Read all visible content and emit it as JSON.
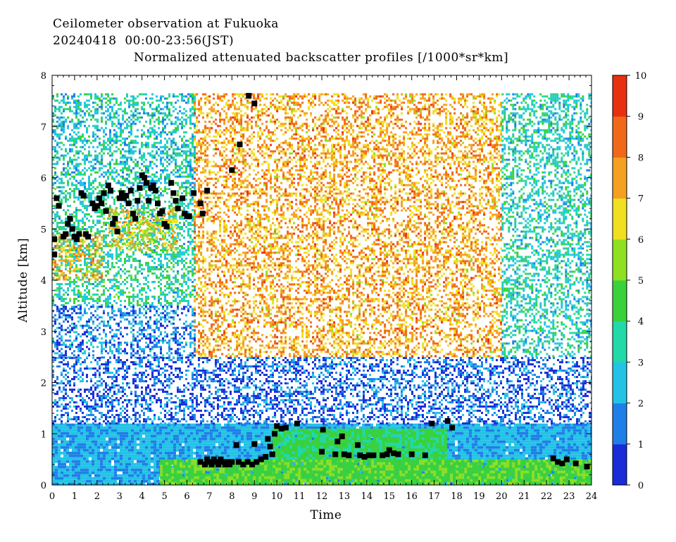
{
  "header": {
    "line1": "Ceilometer observation at Fukuoka",
    "line2": "20240418  00:00-23:56(JST)",
    "line3": "Normalized attenuated backscatter profiles [/1000*sr*km]"
  },
  "chart_data": {
    "type": "heatmap",
    "xlabel": "Time",
    "ylabel": "Altitude [km]",
    "xlim": [
      0,
      24
    ],
    "ylim": [
      0,
      8
    ],
    "x_ticks": [
      "0",
      "1",
      "2",
      "3",
      "4",
      "5",
      "6",
      "7",
      "8",
      "9",
      "10",
      "11",
      "12",
      "13",
      "14",
      "15",
      "16",
      "17",
      "18",
      "19",
      "20",
      "21",
      "22",
      "23",
      "24"
    ],
    "y_ticks": [
      "0",
      "1",
      "2",
      "3",
      "4",
      "5",
      "6",
      "7",
      "8"
    ],
    "colorbar": {
      "range": [
        0,
        10
      ],
      "ticks": [
        "0",
        "1",
        "2",
        "3",
        "4",
        "5",
        "6",
        "7",
        "8",
        "9",
        "10"
      ],
      "colors": [
        "#1a2bd8",
        "#1f7fe8",
        "#22c3e6",
        "#22d9a8",
        "#3ad23a",
        "#8fe020",
        "#f0e020",
        "#f5a020",
        "#f06818",
        "#e83010"
      ]
    },
    "regions": [
      {
        "x0": 0,
        "x1": 24,
        "y0": 0,
        "y1": 1.2,
        "value": 2.2
      },
      {
        "x0": 0,
        "x1": 24,
        "y0": 1.2,
        "y1": 2.5,
        "value": 1.2
      },
      {
        "x0": 4.8,
        "x1": 24,
        "y0": 0,
        "y1": 0.5,
        "value": 4.8
      },
      {
        "x0": 9.8,
        "x1": 17.5,
        "y0": 0.5,
        "y1": 1.1,
        "value": 4.2
      },
      {
        "x0": 0,
        "x1": 6.3,
        "y0": 3.5,
        "y1": 5.8,
        "value": 3.5
      },
      {
        "x0": 0,
        "x1": 2.2,
        "y0": 4.0,
        "y1": 4.9,
        "value": 7.2
      },
      {
        "x0": 2.5,
        "x1": 5.6,
        "y0": 4.6,
        "y1": 5.4,
        "value": 6.6
      },
      {
        "x0": 6.3,
        "x1": 20,
        "y0": 2.5,
        "y1": 7.65,
        "value": 7.5
      },
      {
        "x0": 20,
        "x1": 24,
        "y0": 2.5,
        "y1": 7.65,
        "value": 3.2
      },
      {
        "x0": 0,
        "x1": 6.3,
        "y0": 5.8,
        "y1": 7.65,
        "value": 3.0
      },
      {
        "x0": 0,
        "x1": 6.3,
        "y0": 2.5,
        "y1": 3.5,
        "value": 1.6
      }
    ],
    "cloud_base_points": [
      {
        "x": 0.1,
        "y": 4.5
      },
      {
        "x": 0.1,
        "y": 4.8
      },
      {
        "x": 0.2,
        "y": 5.6
      },
      {
        "x": 0.3,
        "y": 5.45
      },
      {
        "x": 0.5,
        "y": 4.85
      },
      {
        "x": 0.6,
        "y": 4.9
      },
      {
        "x": 0.7,
        "y": 5.1
      },
      {
        "x": 0.8,
        "y": 5.2
      },
      {
        "x": 0.9,
        "y": 5.0
      },
      {
        "x": 1.0,
        "y": 4.85
      },
      {
        "x": 1.1,
        "y": 4.8
      },
      {
        "x": 1.2,
        "y": 4.9
      },
      {
        "x": 1.3,
        "y": 5.7
      },
      {
        "x": 1.4,
        "y": 5.65
      },
      {
        "x": 1.5,
        "y": 4.9
      },
      {
        "x": 1.6,
        "y": 4.85
      },
      {
        "x": 1.8,
        "y": 5.5
      },
      {
        "x": 1.9,
        "y": 5.4
      },
      {
        "x": 2.0,
        "y": 5.45
      },
      {
        "x": 2.1,
        "y": 5.6
      },
      {
        "x": 2.2,
        "y": 5.5
      },
      {
        "x": 2.3,
        "y": 5.7
      },
      {
        "x": 2.4,
        "y": 5.35
      },
      {
        "x": 2.5,
        "y": 5.85
      },
      {
        "x": 2.6,
        "y": 5.75
      },
      {
        "x": 2.7,
        "y": 5.1
      },
      {
        "x": 2.8,
        "y": 5.2
      },
      {
        "x": 2.9,
        "y": 4.95
      },
      {
        "x": 3.0,
        "y": 5.6
      },
      {
        "x": 3.1,
        "y": 5.7
      },
      {
        "x": 3.2,
        "y": 5.6
      },
      {
        "x": 3.3,
        "y": 5.65
      },
      {
        "x": 3.4,
        "y": 5.5
      },
      {
        "x": 3.5,
        "y": 5.75
      },
      {
        "x": 3.6,
        "y": 5.3
      },
      {
        "x": 3.7,
        "y": 5.2
      },
      {
        "x": 3.8,
        "y": 5.55
      },
      {
        "x": 3.9,
        "y": 5.8
      },
      {
        "x": 4.0,
        "y": 6.05
      },
      {
        "x": 4.1,
        "y": 6.0
      },
      {
        "x": 4.2,
        "y": 5.9
      },
      {
        "x": 4.3,
        "y": 5.55
      },
      {
        "x": 4.4,
        "y": 5.8
      },
      {
        "x": 4.5,
        "y": 5.85
      },
      {
        "x": 4.6,
        "y": 5.75
      },
      {
        "x": 4.7,
        "y": 5.5
      },
      {
        "x": 4.8,
        "y": 5.3
      },
      {
        "x": 4.9,
        "y": 5.35
      },
      {
        "x": 5.0,
        "y": 5.1
      },
      {
        "x": 5.1,
        "y": 5.05
      },
      {
        "x": 5.3,
        "y": 5.9
      },
      {
        "x": 5.4,
        "y": 5.7
      },
      {
        "x": 5.5,
        "y": 5.55
      },
      {
        "x": 5.6,
        "y": 5.4
      },
      {
        "x": 5.8,
        "y": 5.6
      },
      {
        "x": 5.9,
        "y": 5.3
      },
      {
        "x": 6.0,
        "y": 5.25
      },
      {
        "x": 6.1,
        "y": 5.25
      },
      {
        "x": 6.3,
        "y": 5.7
      },
      {
        "x": 6.6,
        "y": 5.5
      },
      {
        "x": 6.7,
        "y": 5.3
      },
      {
        "x": 6.9,
        "y": 5.75
      },
      {
        "x": 8.0,
        "y": 6.15
      },
      {
        "x": 8.35,
        "y": 6.65
      },
      {
        "x": 8.75,
        "y": 7.6
      },
      {
        "x": 9.0,
        "y": 7.45
      },
      {
        "x": 6.6,
        "y": 0.45
      },
      {
        "x": 6.8,
        "y": 0.4
      },
      {
        "x": 6.9,
        "y": 0.5
      },
      {
        "x": 7.0,
        "y": 0.45
      },
      {
        "x": 7.1,
        "y": 0.4
      },
      {
        "x": 7.2,
        "y": 0.5
      },
      {
        "x": 7.3,
        "y": 0.45
      },
      {
        "x": 7.4,
        "y": 0.4
      },
      {
        "x": 7.5,
        "y": 0.5
      },
      {
        "x": 7.6,
        "y": 0.45
      },
      {
        "x": 7.7,
        "y": 0.4
      },
      {
        "x": 7.8,
        "y": 0.45
      },
      {
        "x": 7.9,
        "y": 0.4
      },
      {
        "x": 8.0,
        "y": 0.45
      },
      {
        "x": 8.2,
        "y": 0.78
      },
      {
        "x": 8.3,
        "y": 0.45
      },
      {
        "x": 8.5,
        "y": 0.4
      },
      {
        "x": 8.7,
        "y": 0.45
      },
      {
        "x": 8.9,
        "y": 0.4
      },
      {
        "x": 9.0,
        "y": 0.8
      },
      {
        "x": 9.1,
        "y": 0.45
      },
      {
        "x": 9.3,
        "y": 0.5
      },
      {
        "x": 9.5,
        "y": 0.55
      },
      {
        "x": 9.6,
        "y": 0.9
      },
      {
        "x": 9.7,
        "y": 0.75
      },
      {
        "x": 9.8,
        "y": 0.6
      },
      {
        "x": 9.9,
        "y": 1.0
      },
      {
        "x": 10.0,
        "y": 1.15
      },
      {
        "x": 10.2,
        "y": 1.1
      },
      {
        "x": 10.4,
        "y": 1.12
      },
      {
        "x": 10.9,
        "y": 1.2
      },
      {
        "x": 12.0,
        "y": 0.65
      },
      {
        "x": 12.05,
        "y": 1.08
      },
      {
        "x": 12.6,
        "y": 0.6
      },
      {
        "x": 12.7,
        "y": 0.85
      },
      {
        "x": 12.9,
        "y": 0.95
      },
      {
        "x": 13.0,
        "y": 0.6
      },
      {
        "x": 13.2,
        "y": 0.58
      },
      {
        "x": 13.6,
        "y": 0.78
      },
      {
        "x": 13.7,
        "y": 0.58
      },
      {
        "x": 13.9,
        "y": 0.55
      },
      {
        "x": 14.1,
        "y": 0.58
      },
      {
        "x": 14.3,
        "y": 0.58
      },
      {
        "x": 14.7,
        "y": 0.58
      },
      {
        "x": 14.9,
        "y": 0.6
      },
      {
        "x": 15.0,
        "y": 0.68
      },
      {
        "x": 15.2,
        "y": 0.62
      },
      {
        "x": 15.4,
        "y": 0.6
      },
      {
        "x": 16.0,
        "y": 0.6
      },
      {
        "x": 16.6,
        "y": 0.58
      },
      {
        "x": 16.9,
        "y": 1.2
      },
      {
        "x": 17.6,
        "y": 1.25
      },
      {
        "x": 17.8,
        "y": 1.12
      },
      {
        "x": 22.3,
        "y": 0.52
      },
      {
        "x": 22.5,
        "y": 0.45
      },
      {
        "x": 22.7,
        "y": 0.42
      },
      {
        "x": 22.9,
        "y": 0.5
      },
      {
        "x": 23.3,
        "y": 0.42
      },
      {
        "x": 23.8,
        "y": 0.36
      }
    ]
  }
}
